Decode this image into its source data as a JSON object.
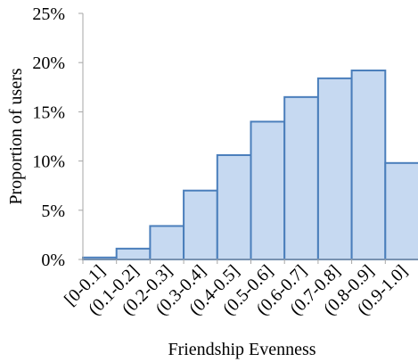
{
  "chart_data": {
    "type": "bar",
    "categories": [
      "[0-0.1]",
      "(0.1-0.2]",
      "(0.2-0.3]",
      "(0.3-0.4]",
      "(0.4-0.5]",
      "(0.5-0.6]",
      "(0.6-0.7]",
      "(0.7-0.8]",
      "(0.8-0.9]",
      "(0.9-1.0]"
    ],
    "values": [
      0.2,
      1.1,
      3.4,
      7.0,
      10.6,
      14.0,
      16.5,
      18.4,
      19.2,
      9.8
    ],
    "xlabel": "Friendship Evenness",
    "ylabel": "Proportion of users",
    "ylim": [
      0,
      25
    ],
    "yticks": [
      "0%",
      "5%",
      "10%",
      "15%",
      "20%",
      "25%"
    ],
    "grid": false,
    "colors": {
      "fill": "#c6d9f1",
      "stroke": "#4a7ebb",
      "axis": "#a6a6a6"
    }
  }
}
